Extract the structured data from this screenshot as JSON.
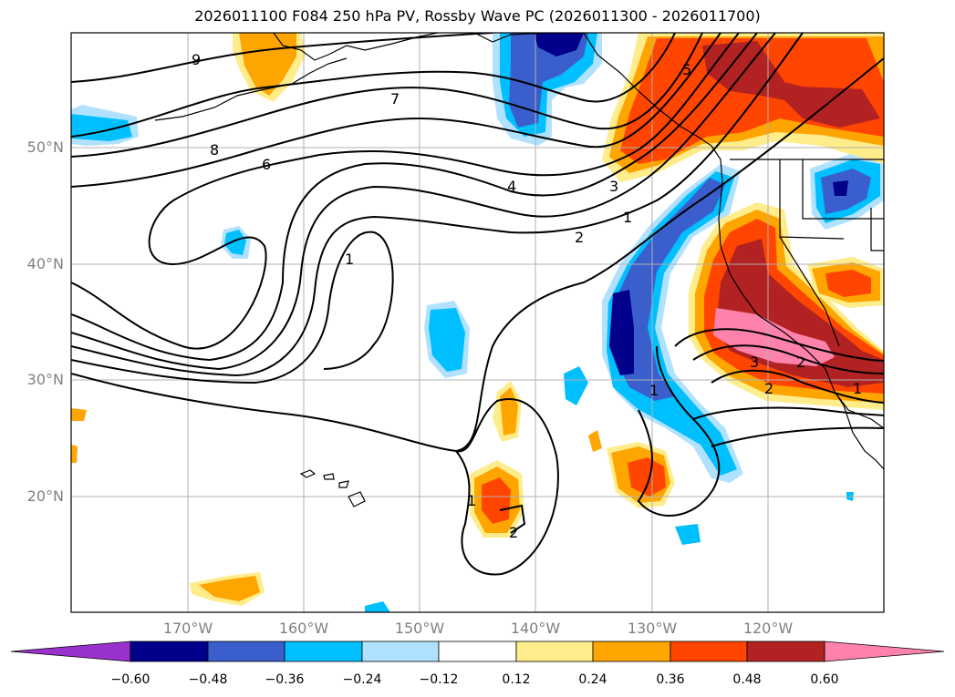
{
  "title": "2026011100 F084 250 hPa PV, Rossby Wave PC (2026011300 - 2026011700)",
  "lon_labels": [
    "170°W",
    "160°W",
    "150°W",
    "140°W",
    "130°W",
    "120°W"
  ],
  "lat_labels": [
    "50°N",
    "40°N",
    "30°N",
    "20°N"
  ],
  "contour_labels": [
    "9",
    "8",
    "7",
    "6",
    "5",
    "4",
    "3",
    "2",
    "1",
    "1",
    "1",
    "2",
    "3",
    "2",
    "1",
    "2",
    "1"
  ],
  "colorbar": {
    "ticks": [
      "−0.60",
      "−0.48",
      "−0.36",
      "−0.24",
      "−0.12",
      "0.12",
      "0.24",
      "0.36",
      "0.48",
      "0.60"
    ],
    "colors": [
      "#9932cc",
      "#00008b",
      "#3a5fcd",
      "#00bfff",
      "#b0e2ff",
      "#ffffff",
      "#ffec8b",
      "#ffa500",
      "#ff4500",
      "#b22222",
      "#ff82ab"
    ]
  },
  "fill_colors": {
    "neg1": "#b0e2ff",
    "neg2": "#00bfff",
    "neg3": "#3a5fcd",
    "neg4": "#00008b",
    "pos1": "#ffec8b",
    "pos2": "#ffa500",
    "pos3": "#ff4500",
    "pos4": "#b22222",
    "pos5": "#ff82ab"
  }
}
